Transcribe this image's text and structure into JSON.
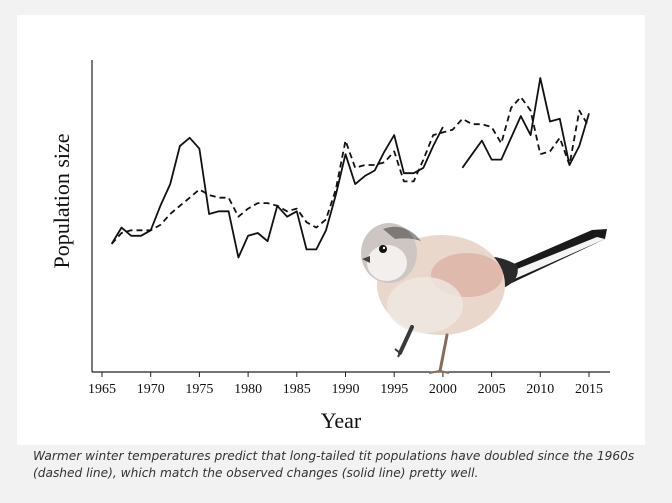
{
  "chart_data": {
    "type": "line",
    "title": "",
    "xlabel": "Year",
    "ylabel": "Population size",
    "xlim": [
      1965,
      2015
    ],
    "ylim": [
      0,
      1
    ],
    "x_ticks": [
      "1965",
      "1970",
      "1975",
      "1980",
      "1985",
      "1990",
      "1995",
      "2000",
      "2005",
      "2010",
      "2015"
    ],
    "y_ticks": [],
    "grid": false,
    "legend": "none",
    "series": [
      {
        "style": "solid",
        "color": "#111111",
        "segments": [
          {
            "x": [
              1966,
              1967,
              1968,
              1969,
              1970,
              1971,
              1972,
              1973,
              1974,
              1975,
              1976,
              1977,
              1978,
              1979,
              1980,
              1981,
              1982,
              1983,
              1984,
              1985,
              1986,
              1987,
              1988,
              1989,
              1990,
              1991,
              1992,
              1993,
              1994,
              1995,
              1996,
              1997,
              1998,
              1999,
              2000
            ],
            "y": [
              0.39,
              0.45,
              0.42,
              0.42,
              0.44,
              0.53,
              0.61,
              0.75,
              0.78,
              0.74,
              0.5,
              0.51,
              0.51,
              0.34,
              0.42,
              0.43,
              0.4,
              0.53,
              0.49,
              0.51,
              0.37,
              0.37,
              0.44,
              0.57,
              0.72,
              0.61,
              0.64,
              0.66,
              0.73,
              0.79,
              0.65,
              0.65,
              0.67,
              0.75,
              0.82
            ]
          },
          {
            "x": [
              2002,
              2003,
              2004,
              2005,
              2006,
              2007,
              2008,
              2009,
              2010,
              2011,
              2012,
              2013,
              2014,
              2015
            ],
            "y": [
              0.67,
              0.72,
              0.77,
              0.7,
              0.7,
              0.78,
              0.86,
              0.79,
              1.0,
              0.84,
              0.85,
              0.68,
              0.75,
              0.87
            ]
          }
        ]
      },
      {
        "style": "dashed",
        "color": "#111111",
        "segments": [
          {
            "x": [
              1966,
              1967,
              1968,
              1969,
              1970,
              1971,
              1972,
              1973,
              1974,
              1975,
              1976,
              1977,
              1978,
              1979,
              1980,
              1981,
              1982,
              1983,
              1984,
              1985,
              1986,
              1987,
              1988,
              1989,
              1990,
              1991,
              1992,
              1993,
              1994,
              1995,
              1996,
              1997,
              1998,
              1999,
              2000,
              2001,
              2002,
              2003,
              2004,
              2005,
              2006,
              2007,
              2008,
              2009,
              2010,
              2011,
              2012,
              2013,
              2014,
              2015
            ],
            "y": [
              0.39,
              0.43,
              0.44,
              0.44,
              0.44,
              0.46,
              0.5,
              0.53,
              0.56,
              0.59,
              0.57,
              0.56,
              0.56,
              0.49,
              0.52,
              0.54,
              0.54,
              0.53,
              0.51,
              0.52,
              0.47,
              0.45,
              0.48,
              0.59,
              0.77,
              0.67,
              0.68,
              0.68,
              0.69,
              0.73,
              0.62,
              0.62,
              0.7,
              0.79,
              0.8,
              0.81,
              0.85,
              0.83,
              0.83,
              0.82,
              0.76,
              0.89,
              0.93,
              0.88,
              0.72,
              0.73,
              0.78,
              0.68,
              0.88,
              0.82
            ]
          }
        ]
      }
    ]
  },
  "image": {
    "description": "long-tailed tit"
  },
  "caption": "Warmer winter temperatures predict that long-tailed tit populations have doubled since the 1960s (dashed line), which match the observed changes (solid line) pretty well."
}
